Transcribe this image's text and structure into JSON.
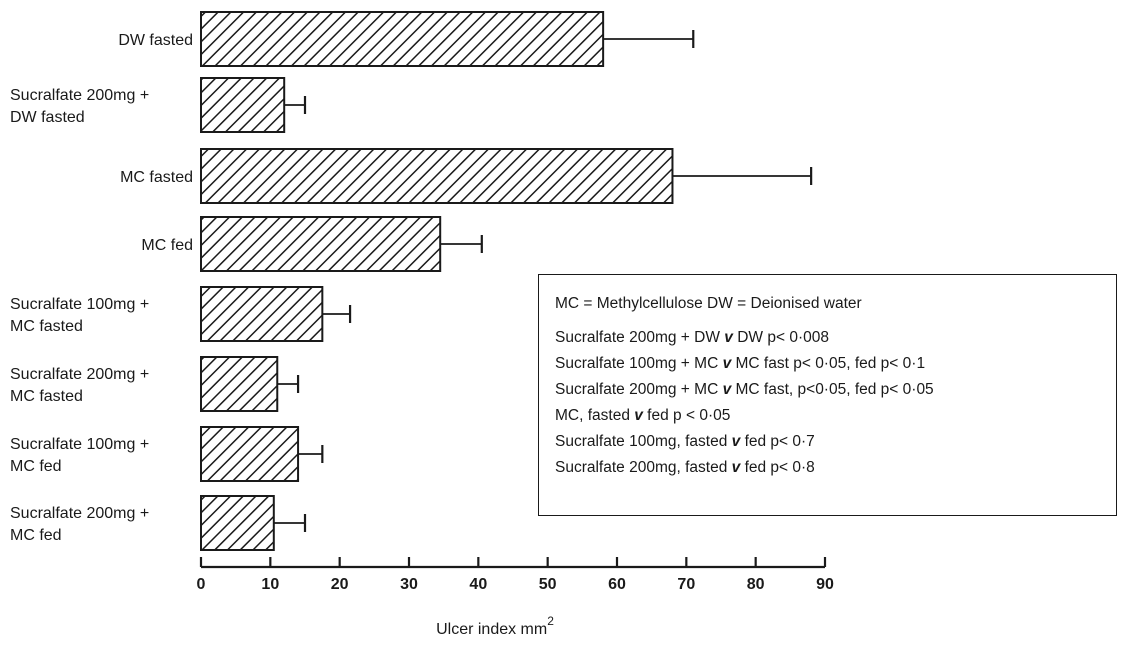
{
  "chart_data": {
    "type": "bar",
    "orientation": "horizontal",
    "categories": [
      [
        "DW fasted"
      ],
      [
        "Sucralfate 200mg +",
        "DW fasted"
      ],
      [
        "MC fasted"
      ],
      [
        "MC fed"
      ],
      [
        "Sucralfate 100mg +",
        "MC fasted"
      ],
      [
        "Sucralfate 200mg +",
        "MC fasted"
      ],
      [
        "Sucralfate 100mg +",
        "MC fed"
      ],
      [
        "Sucralfate 200mg +",
        "MC fed"
      ]
    ],
    "values": [
      58,
      12,
      68,
      34.5,
      17.5,
      11,
      14,
      10.5
    ],
    "error_upper": [
      71,
      15,
      88,
      40.5,
      21.5,
      14,
      17.5,
      15
    ],
    "xlabel": "Ulcer index mm",
    "xlabel_superscript": "2",
    "xlim": [
      0,
      90
    ],
    "xticks": [
      0,
      10,
      20,
      30,
      40,
      50,
      60,
      70,
      80,
      90
    ],
    "grid": false,
    "bar_fill": "diagonal-hatch",
    "legend_placement": "right",
    "legend_lines": [
      "MC = Methylcellulose   DW = Deionised water",
      "Sucralfate 200mg + DW <v> DW  p< 0·008",
      "Sucralfate 100mg + MC <v> MC fast p< 0·05,   fed  p< 0·1",
      "Sucralfate 200mg + MC <v> MC fast, p<0·05,  fed p< 0·05",
      "MC, fasted <v> fed p < 0·05",
      "Sucralfate 100mg, fasted <v> fed p< 0·7",
      "Sucralfate 200mg, fasted <v> fed p< 0·8"
    ]
  }
}
